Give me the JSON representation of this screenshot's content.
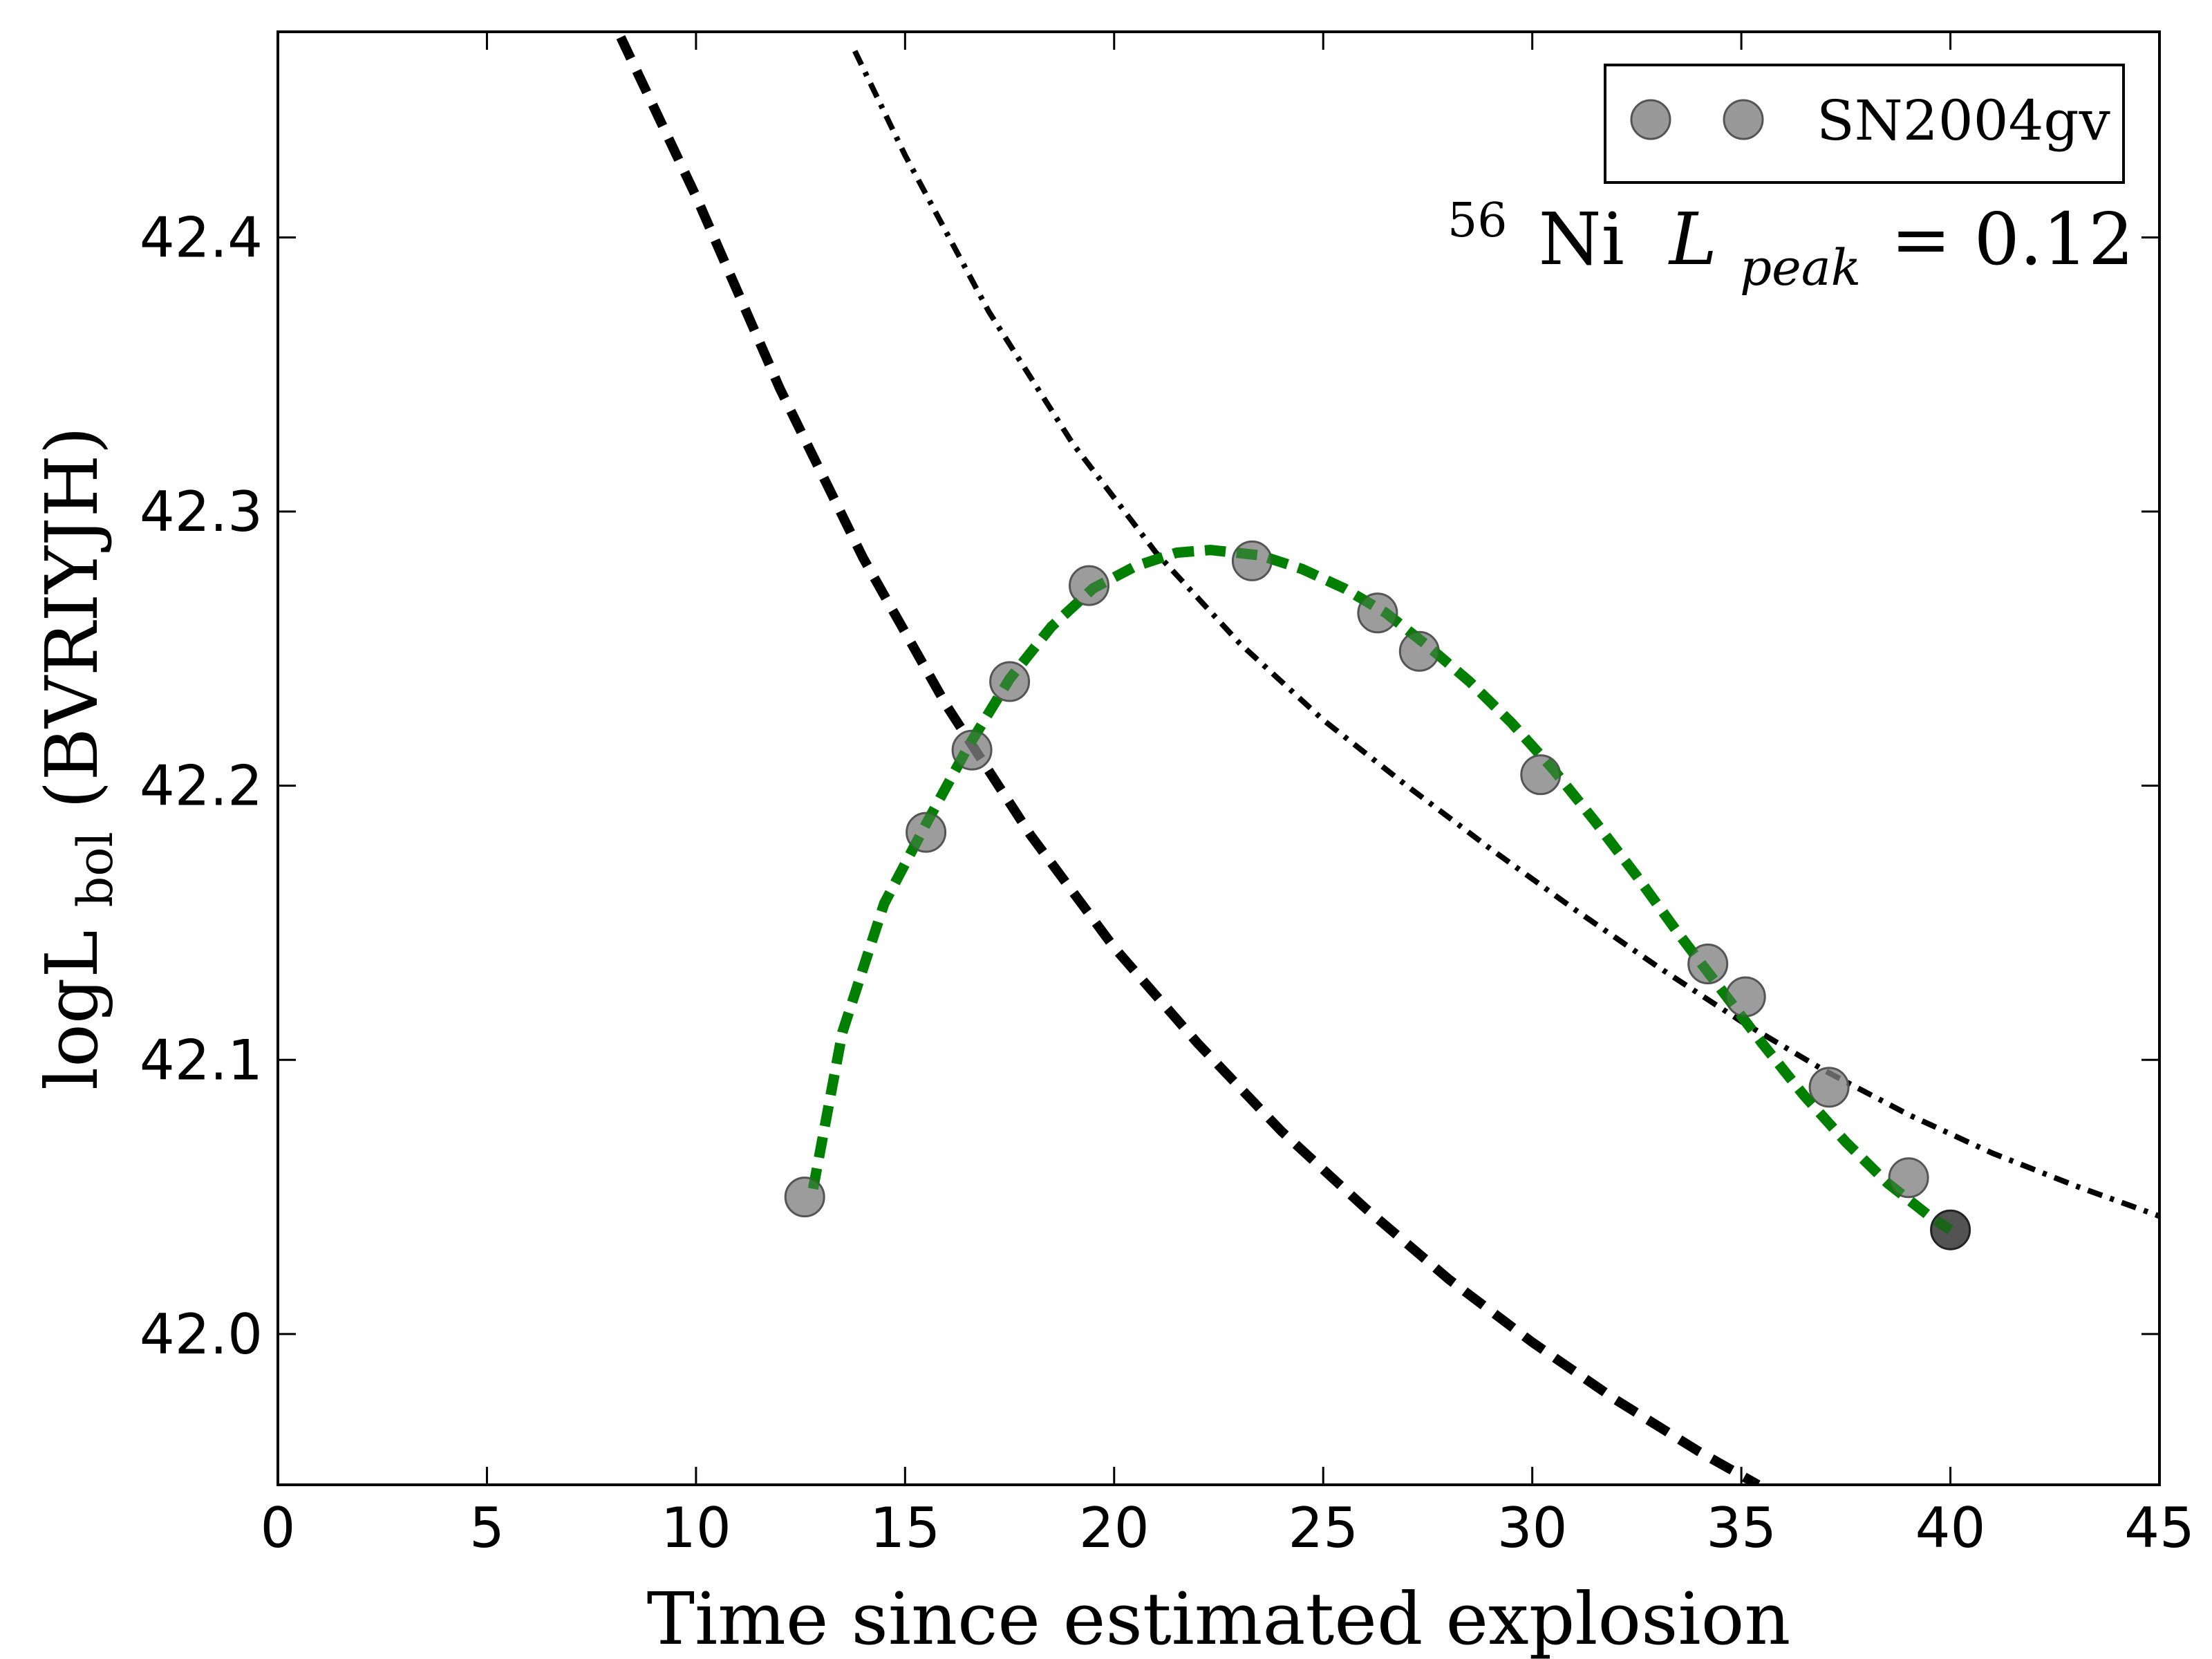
{
  "chart_data": {
    "type": "scatter",
    "xlabel": "Time since estimated explosion",
    "ylabel": "logL",
    "ylabel_sub": "bol",
    "ylabel_paren": "(BVRIYJH)",
    "xlim": [
      0,
      45
    ],
    "ylim": [
      41.945,
      42.475
    ],
    "xticks": [
      0,
      5,
      10,
      15,
      20,
      25,
      30,
      35,
      40,
      45
    ],
    "yticks": [
      42.0,
      42.1,
      42.2,
      42.3,
      42.4
    ],
    "grid": false,
    "legend": {
      "position": "top-right",
      "label": "SN2004gv"
    },
    "annotation": {
      "sup": "56",
      "element": "Ni",
      "var": "L",
      "sub": "peak",
      "rhs": "= 0.12"
    },
    "series": [
      {
        "name": "SN2004gv",
        "kind": "points",
        "color": "#808080",
        "x": [
          12.6,
          15.5,
          16.6,
          17.5,
          19.4,
          23.3,
          26.3,
          27.3,
          30.2,
          34.2,
          35.1,
          37.1,
          39.0
        ],
        "y": [
          42.05,
          42.183,
          42.213,
          42.238,
          42.273,
          42.282,
          42.263,
          42.249,
          42.204,
          42.135,
          42.123,
          42.09,
          42.057
        ]
      },
      {
        "kind": "points-dark",
        "color": "#404040",
        "x": [
          40.0
        ],
        "y": [
          42.038
        ]
      },
      {
        "kind": "model-fit",
        "color": "#007f00",
        "style": "dashed",
        "x": [
          12.8,
          13.5,
          14.5,
          15.5,
          16.5,
          17.5,
          18.5,
          19.5,
          20.5,
          21.5,
          22.3,
          23.5,
          24.5,
          25.5,
          26.5,
          27.5,
          28.5,
          29.5,
          30.5,
          31.5,
          32.5,
          33.5,
          34.5,
          35.5,
          36.5,
          37.5,
          38.5,
          39.5,
          40.0
        ],
        "y": [
          42.053,
          42.11,
          42.157,
          42.186,
          42.214,
          42.239,
          42.258,
          42.272,
          42.28,
          42.285,
          42.286,
          42.284,
          42.279,
          42.272,
          42.263,
          42.251,
          42.238,
          42.223,
          42.206,
          42.187,
          42.167,
          42.146,
          42.126,
          42.106,
          42.087,
          42.07,
          42.055,
          42.043,
          42.038
        ]
      },
      {
        "kind": "decay-dashed",
        "color": "#000000",
        "style": "dashed",
        "x": [
          8.2,
          10,
          12,
          14,
          16,
          18,
          20,
          22,
          24,
          26,
          28,
          30,
          32,
          34,
          35.4
        ],
        "y": [
          42.473,
          42.415,
          42.345,
          42.283,
          42.229,
          42.182,
          42.141,
          42.106,
          42.074,
          42.046,
          42.02,
          41.997,
          41.976,
          41.957,
          41.945
        ]
      },
      {
        "kind": "decay-dashdot",
        "color": "#000000",
        "style": "dashdot",
        "x": [
          13.8,
          15,
          17,
          19,
          21,
          23,
          25,
          27,
          29,
          31,
          33,
          35,
          37,
          39,
          41,
          43,
          45
        ],
        "y": [
          42.468,
          42.43,
          42.373,
          42.325,
          42.285,
          42.252,
          42.224,
          42.2,
          42.177,
          42.155,
          42.134,
          42.114,
          42.096,
          42.08,
          42.066,
          42.054,
          42.043
        ]
      }
    ]
  }
}
